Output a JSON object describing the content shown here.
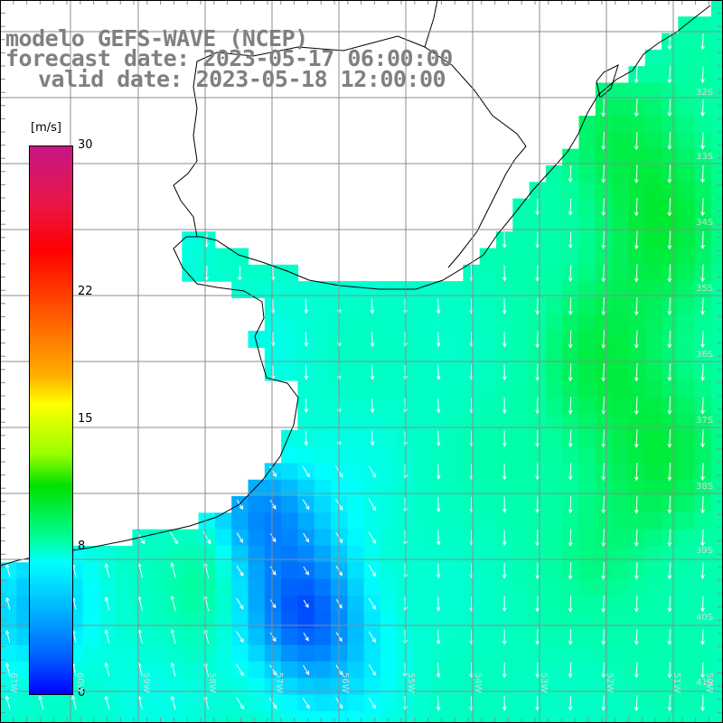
{
  "title": {
    "line1": "modelo GEFS-WAVE (NCEP)",
    "line2": "forecast date: 2023-05-17 06:00:00",
    "line3": "valid date: 2023-05-18 12:00:00"
  },
  "colorbar": {
    "unit": "[m/s]",
    "ticks": [
      {
        "value": 30,
        "label": "30"
      },
      {
        "value": 22,
        "label": "22"
      },
      {
        "value": 15,
        "label": "15"
      },
      {
        "value": 8,
        "label": "8"
      },
      {
        "value": 0,
        "label": "0"
      }
    ],
    "colors": [
      "#0000ff",
      "#0060ff",
      "#00b0ff",
      "#00ffff",
      "#00ffa0",
      "#00e000",
      "#9cff00",
      "#ffff00",
      "#ffb000",
      "#ff6a00",
      "#ff0000",
      "#e8174a",
      "#c71585"
    ]
  },
  "map": {
    "latitude_labels": [
      "32S",
      "33S",
      "34S",
      "35S",
      "36S",
      "37S",
      "38S",
      "39S",
      "40S",
      "41S"
    ],
    "longitude_labels": [
      "61W",
      "60W",
      "59W",
      "58W",
      "57W",
      "56W",
      "55W",
      "54W",
      "53W",
      "52W",
      "51W",
      "50W"
    ],
    "wind_field": "surface wind speed (m/s) with direction arrows, mostly northerly flow offshore",
    "land_color": "#ffffff",
    "grid_color": "#8c8c8c"
  }
}
